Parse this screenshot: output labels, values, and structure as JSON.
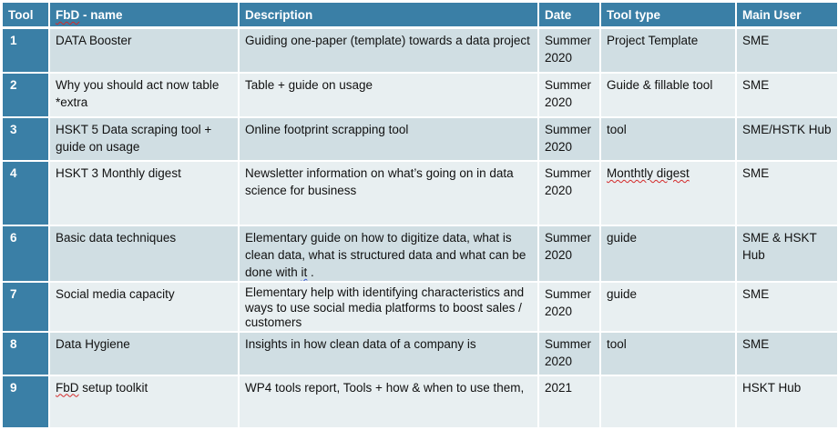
{
  "headers": {
    "tool": "Tool",
    "name_prefix": "FbD",
    "name_suffix": " - name",
    "description": "Description",
    "date": "Date",
    "tool_type": "Tool type",
    "main_user": "Main User"
  },
  "rows": [
    {
      "num": "1",
      "name": "DATA Booster",
      "description": "Guiding one-paper (template) towards a data project",
      "date": "Summer 2020",
      "type": "Project Template",
      "user": "SME"
    },
    {
      "num": "2",
      "name": "Why you should act now table *extra",
      "description": "Table + guide on usage",
      "date": "Summer 2020",
      "type": "Guide & fillable tool",
      "user": "SME"
    },
    {
      "num": "3",
      "name": "HSKT 5 Data scraping tool + guide on usage",
      "description": "Online footprint scrapping tool",
      "date": "Summer 2020",
      "type": "tool",
      "user": "SME/HSTK Hub"
    },
    {
      "num": "4",
      "name": "HSKT 3 Monthly digest",
      "description": "Newsletter information on what’s going on in data science for business",
      "date": "Summer 2020",
      "type": "Monthtly digest",
      "user": "SME"
    },
    {
      "num": "6",
      "name": "Basic data techniques",
      "description_main": "Elementary guide on how to digitize data, what is clean data, what is structured data and what can be done with ",
      "description_it": "it",
      "description_end": " .",
      "date": "Summer 2020",
      "type": "guide",
      "user": "SME & HSKT Hub"
    },
    {
      "num": "7",
      "name": "Social media capacity",
      "description": "Elementary help with identifying characteristics and ways to use social media platforms to boost sales / customers",
      "date": "Summer 2020",
      "type": "guide",
      "user": "SME"
    },
    {
      "num": "8",
      "name": "Data Hygiene",
      "description": "Insights in how clean data of a company is",
      "date": "Summer 2020",
      "type": "tool",
      "user": "SME"
    },
    {
      "num": "9",
      "name_prefix": "FbD",
      "name_suffix": " setup toolkit",
      "description": "WP4 tools report, Tools + how & when to use them,",
      "date": "2021",
      "type": "",
      "user": "HSKT Hub"
    }
  ]
}
